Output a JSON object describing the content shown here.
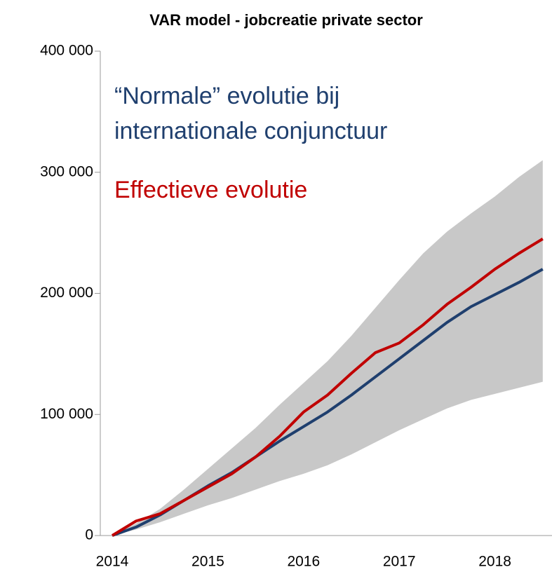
{
  "chart_data": {
    "type": "line",
    "title": "VAR model - jobcreatie private sector",
    "x": [
      2014,
      2014.25,
      2014.5,
      2014.75,
      2015,
      2015.25,
      2015.5,
      2015.75,
      2016,
      2016.25,
      2016.5,
      2016.75,
      2017,
      2017.25,
      2017.5,
      2017.75,
      2018,
      2018.25,
      2018.5
    ],
    "xlim": [
      2014,
      2018.56
    ],
    "xticks": [
      2014,
      2015,
      2016,
      2017,
      2018
    ],
    "ylim": [
      0,
      400000
    ],
    "yticks": [
      0,
      {
        "value": 100000,
        "label": "100 000"
      },
      {
        "value": 200000,
        "label": "200 000"
      },
      {
        "value": 300000,
        "label": "300 000"
      },
      {
        "value": 400000,
        "label": "400 000"
      }
    ],
    "band": {
      "color": "#c8c8c8",
      "upper": [
        0,
        10000,
        22000,
        38000,
        55000,
        72000,
        89000,
        108000,
        126000,
        144000,
        165000,
        188000,
        211000,
        233000,
        251000,
        266000,
        280000,
        296000,
        310000
      ],
      "lower": [
        0,
        5000,
        11000,
        18000,
        25000,
        31000,
        38000,
        45000,
        51000,
        58000,
        67000,
        77000,
        87000,
        96000,
        105000,
        112000,
        117000,
        122000,
        127000
      ]
    },
    "series": [
      {
        "name": "“Normale” evolutie bij internationale conjunctuur",
        "color": "#1f3f6e",
        "values": [
          0,
          7000,
          17000,
          29000,
          41000,
          52000,
          65000,
          78000,
          90000,
          102000,
          116000,
          131000,
          146000,
          161000,
          176000,
          189000,
          199000,
          209000,
          220000
        ]
      },
      {
        "name": "Effectieve evolutie",
        "color": "#c00000",
        "values": [
          0,
          12000,
          18000,
          29000,
          40000,
          51000,
          65000,
          82000,
          102000,
          116000,
          134000,
          151000,
          159000,
          174000,
          191000,
          205000,
          220000,
          233000,
          245000
        ]
      }
    ]
  }
}
